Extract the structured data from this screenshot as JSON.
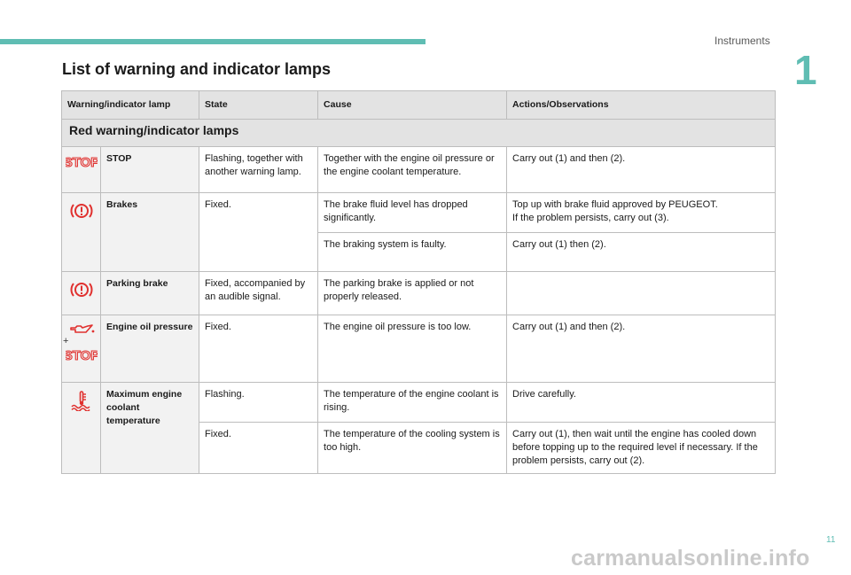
{
  "header": {
    "section_name": "Instruments",
    "chapter_number": "1"
  },
  "page": {
    "title": "List of warning and indicator lamps",
    "page_number": "11"
  },
  "table": {
    "columns": [
      "Warning/indicator lamp",
      "State",
      "Cause",
      "Actions/Observations"
    ],
    "group_title": "Red warning/indicator lamps",
    "rows": [
      {
        "lamp": "STOP",
        "icon": "stop-icon",
        "state": "Flashing, together with another warning lamp.",
        "cause": "Together with the engine oil pressure or the engine coolant temperature.",
        "action": "Carry out (1) and then (2)."
      },
      {
        "lamp": "Brakes",
        "icon": "brake-warning-icon",
        "state": "Fixed.",
        "cause": "The brake fluid level has dropped significantly.",
        "action": "Top up with brake fluid approved by PEUGEOT.\nIf the problem persists, carry out (3)."
      },
      {
        "cause": "The braking system is faulty.",
        "action": "Carry out (1) then (2)."
      },
      {
        "lamp": "Parking brake",
        "icon": "parking-brake-icon",
        "state": "Fixed, accompanied by an audible signal.",
        "cause": "The parking brake is applied or not properly released.",
        "action": ""
      },
      {
        "lamp": "Engine oil pressure",
        "icon": "oil-can-icon",
        "icon_plus": "+",
        "state": "Fixed.",
        "cause": "The engine oil pressure is too low.",
        "action": "Carry out (1) and then (2)."
      },
      {
        "lamp": "Maximum engine coolant temperature",
        "icon": "coolant-temperature-icon",
        "state": "Flashing.",
        "cause": "The temperature of the engine coolant is rising.",
        "action": "Drive carefully."
      },
      {
        "state": "Fixed.",
        "cause": "The temperature of the cooling system is too high.",
        "action": "Carry out (1), then wait until the engine has cooled down before topping up to the required level if necessary. If the problem persists, carry out (2)."
      }
    ]
  },
  "watermark": "carmanualsonline.info",
  "colors": {
    "accent": "#5fbdb3",
    "warning_red": "#e0312f",
    "header_gray": "#e3e3e3"
  }
}
